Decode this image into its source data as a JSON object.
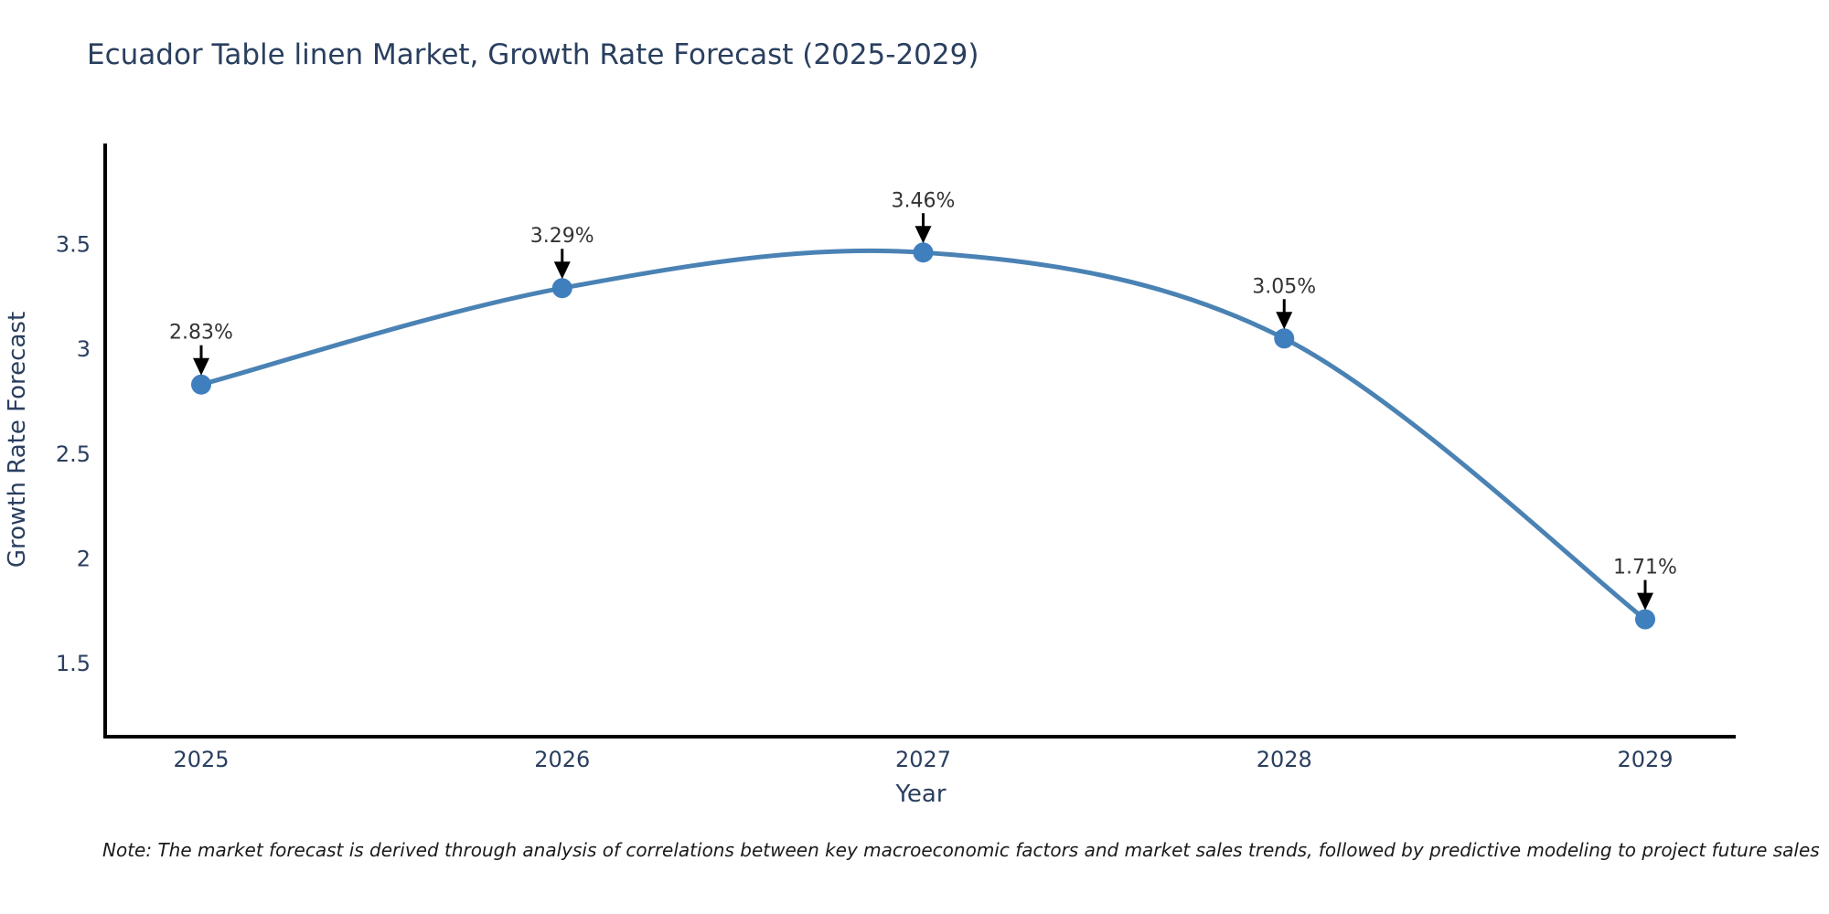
{
  "page": {
    "note": "Note: The market forecast is derived through analysis of correlations between key macroeconomic factors and market sales trends, followed by predictive modeling to project future sales"
  },
  "chart_data": {
    "type": "line",
    "title": "Ecuador Table linen Market, Growth Rate Forecast (2025-2029)",
    "xlabel": "Year",
    "ylabel": "Growth Rate Forecast",
    "categories": [
      "2025",
      "2026",
      "2027",
      "2028",
      "2029"
    ],
    "values": [
      2.83,
      3.29,
      3.46,
      3.05,
      1.71
    ],
    "point_labels": [
      "2.83%",
      "3.29%",
      "3.46%",
      "3.05%",
      "1.71%"
    ],
    "ytick_values": [
      3.5,
      3,
      2.5,
      2,
      1.5
    ],
    "ytick_labels": [
      "3.5",
      "3",
      "2.5",
      "2",
      "1.5"
    ],
    "ylim": [
      1.15,
      3.98
    ],
    "line_shape": "spline",
    "grid": false,
    "legend": false,
    "line_color": "#4a82b4",
    "marker_color": "#3f7fbe",
    "axis_color": "#000000",
    "label_color": "#2a3f5f",
    "annotation_color": "#333333",
    "arrow_color": "#000000"
  }
}
